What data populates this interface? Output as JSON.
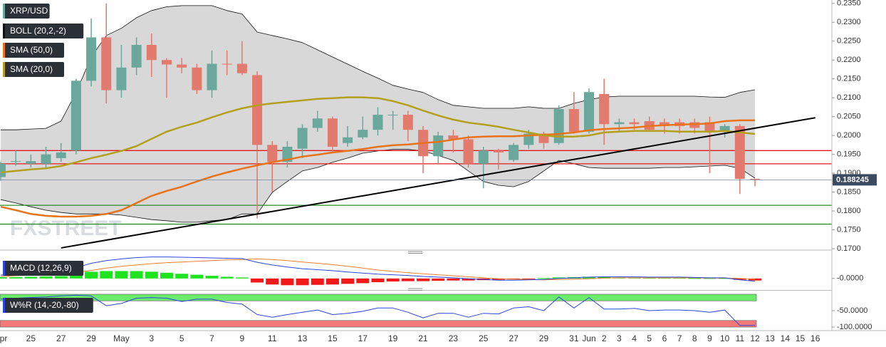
{
  "chart_data": [
    {
      "type": "candlestick",
      "title": "XRP/USD",
      "watermark": "FXSTREET",
      "categories": [
        "Apr",
        null,
        "25",
        null,
        "27",
        null,
        "29",
        null,
        "May",
        null,
        "3",
        null,
        "5",
        null,
        "7",
        null,
        "9",
        null,
        "11",
        null,
        "13",
        null,
        "15",
        null,
        "17",
        null,
        "19",
        null,
        "21",
        null,
        "23",
        null,
        "25",
        null,
        "27",
        null,
        "29",
        null,
        "31",
        "Jun",
        "2",
        "3",
        "4",
        "5",
        "6",
        "7",
        "8",
        "9",
        "10",
        "11",
        "12",
        "13",
        "14",
        "15",
        "16"
      ],
      "open": [
        0.189,
        0.193,
        0.1925,
        0.1925,
        0.194,
        0.196,
        0.2145,
        0.226,
        0.212,
        0.218,
        0.224,
        0.22,
        0.2188,
        0.218,
        0.212,
        0.219,
        0.219,
        0.216,
        0.1975,
        0.193,
        0.1965,
        0.202,
        0.2045,
        0.198,
        0.1995,
        0.2015,
        0.2055,
        0.2055,
        0.2015,
        0.1945,
        0.2,
        0.199,
        0.1925,
        0.196,
        0.1935,
        0.1975,
        0.2005,
        0.198,
        0.207,
        0.201,
        0.211,
        0.203,
        0.2035,
        0.2038,
        0.2035,
        0.2035,
        0.2035,
        0.2035,
        0.201,
        0.2025,
        0.1885,
        null,
        null,
        null,
        null
      ],
      "high": [
        0.193,
        0.196,
        0.195,
        0.197,
        0.198,
        0.215,
        0.231,
        0.235,
        0.224,
        0.226,
        0.227,
        0.2205,
        0.2205,
        0.219,
        0.2225,
        0.2225,
        0.225,
        0.217,
        0.1985,
        0.1985,
        0.203,
        0.2065,
        0.205,
        0.2025,
        0.205,
        0.2075,
        0.2065,
        0.2065,
        0.2025,
        0.201,
        0.2015,
        0.2,
        0.197,
        0.1965,
        0.198,
        0.2015,
        0.201,
        0.208,
        0.2115,
        0.2125,
        0.215,
        0.2045,
        0.2045,
        0.205,
        0.2045,
        0.2045,
        0.2045,
        0.205,
        0.203,
        0.203,
        0.1885,
        null,
        null,
        null,
        null
      ],
      "low": [
        0.188,
        0.192,
        0.1915,
        0.1912,
        0.193,
        0.195,
        0.213,
        0.2085,
        0.21,
        0.216,
        0.2155,
        0.21,
        0.2165,
        0.211,
        0.21,
        0.216,
        0.216,
        0.178,
        0.185,
        0.1915,
        0.194,
        0.201,
        0.1955,
        0.197,
        0.199,
        0.2,
        0.2015,
        0.1985,
        0.19,
        0.1925,
        0.1955,
        0.1915,
        0.186,
        0.191,
        0.193,
        0.1965,
        0.1965,
        0.1975,
        0.2005,
        0.2005,
        0.1975,
        0.201,
        0.2015,
        0.201,
        0.2005,
        0.2005,
        0.2005,
        0.19,
        0.1995,
        0.1845,
        0.1865,
        null,
        null,
        null,
        null
      ],
      "close": [
        0.1925,
        0.1932,
        0.1932,
        0.195,
        0.1955,
        0.2145,
        0.226,
        0.212,
        0.218,
        0.224,
        0.22,
        0.2188,
        0.218,
        0.212,
        0.219,
        0.2188,
        0.2165,
        0.1975,
        0.193,
        0.197,
        0.202,
        0.2045,
        0.197,
        0.1995,
        0.2015,
        0.2055,
        0.2055,
        0.2015,
        0.1945,
        0.2,
        0.199,
        0.1925,
        0.196,
        0.1955,
        0.1975,
        0.2005,
        0.198,
        0.207,
        0.201,
        0.2115,
        0.203,
        0.2035,
        0.203,
        0.2015,
        0.2025,
        0.2025,
        0.202,
        0.201,
        0.2025,
        0.1885,
        0.1882,
        null,
        null,
        null,
        null
      ],
      "up_color": "#6aa89b",
      "down_color": "#e27a6e",
      "bollinger": {
        "name": "BOLL (20,2,-2)",
        "color": "#111111",
        "fill": "#d8d8d8",
        "upper": [
          0.2015,
          0.2015,
          0.2017,
          0.2019,
          0.2038,
          0.2114,
          0.2208,
          0.2265,
          0.2284,
          0.2312,
          0.2331,
          0.2341,
          0.2344,
          0.2344,
          0.2344,
          0.2331,
          0.2322,
          0.2274,
          0.2265,
          0.2256,
          0.2246,
          0.2227,
          0.2208,
          0.2189,
          0.217,
          0.2152,
          0.2133,
          0.2123,
          0.2114,
          0.2095,
          0.208,
          0.2076,
          0.2072,
          0.2072,
          0.2072,
          0.2076,
          0.2072,
          0.2072,
          0.2085,
          0.2095,
          0.2102,
          0.2104,
          0.2104,
          0.2104,
          0.2104,
          0.2104,
          0.2104,
          0.2102,
          0.2101,
          0.2114,
          0.2121,
          null,
          null,
          null,
          null
        ],
        "lower": [
          0.183,
          0.1821,
          0.1811,
          0.1802,
          0.1796,
          0.1792,
          0.1792,
          0.1792,
          0.1789,
          0.1783,
          0.1777,
          0.1774,
          0.177,
          0.177,
          0.1774,
          0.1777,
          0.1792,
          0.1792,
          0.1849,
          0.1878,
          0.1906,
          0.1915,
          0.1929,
          0.194,
          0.1953,
          0.1959,
          0.1963,
          0.1963,
          0.1959,
          0.1947,
          0.1934,
          0.1906,
          0.1878,
          0.1868,
          0.1864,
          0.1878,
          0.1906,
          0.1934,
          0.1925,
          0.1915,
          0.1913,
          0.1913,
          0.1913,
          0.1913,
          0.1915,
          0.1915,
          0.1917,
          0.1919,
          0.1921,
          0.1913,
          0.1887,
          null,
          null,
          null,
          null
        ]
      },
      "series": [
        {
          "name": "SMA (50,0)",
          "color": "#e8731a",
          "values": [
            0.1811,
            0.1802,
            0.1792,
            0.1787,
            0.1785,
            0.1785,
            0.1787,
            0.1792,
            0.1802,
            0.1821,
            0.184,
            0.1853,
            0.1864,
            0.1878,
            0.1891,
            0.1902,
            0.1912,
            0.1921,
            0.1929,
            0.1936,
            0.1944,
            0.1949,
            0.1955,
            0.1959,
            0.1964,
            0.197,
            0.1974,
            0.1976,
            0.198,
            0.1983,
            0.1989,
            0.1995,
            0.1997,
            0.1998,
            0.1998,
            0.2,
            0.2002,
            0.2004,
            0.2008,
            0.2014,
            0.2017,
            0.2019,
            0.2021,
            0.2025,
            0.2027,
            0.2029,
            0.203,
            0.2032,
            0.2038,
            0.204,
            0.204,
            null,
            null,
            null,
            null
          ]
        },
        {
          "name": "SMA (20,0)",
          "color": "#b3a01c",
          "values": [
            0.1902,
            0.1906,
            0.191,
            0.1913,
            0.1919,
            0.1929,
            0.194,
            0.1949,
            0.1959,
            0.1972,
            0.1991,
            0.201,
            0.2023,
            0.2034,
            0.2048,
            0.2061,
            0.2072,
            0.208,
            0.2085,
            0.2089,
            0.2093,
            0.2097,
            0.2099,
            0.2101,
            0.2101,
            0.2099,
            0.2091,
            0.208,
            0.2066,
            0.2053,
            0.2042,
            0.2034,
            0.2029,
            0.2023,
            0.2015,
            0.2008,
            0.2,
            0.1997,
            0.1997,
            0.2,
            0.2008,
            0.201,
            0.2012,
            0.2012,
            0.2012,
            0.201,
            0.201,
            0.201,
            0.2012,
            0.2008,
            0.2004,
            null,
            null,
            null,
            null
          ]
        }
      ],
      "levels": [
        {
          "value": 0.196,
          "color": "#e31a1c"
        },
        {
          "value": 0.1925,
          "color": "#e31a1c"
        },
        {
          "value": 0.1815,
          "color": "#2e8b2e"
        },
        {
          "value": 0.1765,
          "color": "#2e8b2e"
        }
      ],
      "trendline": {
        "color": "#000000",
        "x": [
          "27",
          "16"
        ],
        "values": [
          0.1702,
          0.2047
        ]
      },
      "last_price": 0.188245,
      "last_price_color": "#3b4b61",
      "ylim": [
        0.17,
        0.2359
      ],
      "yticks": [
        {
          "value": 0.235,
          "label": "0.2350"
        },
        {
          "value": 0.23,
          "label": "0.2300"
        },
        {
          "value": 0.225,
          "label": "0.2250"
        },
        {
          "value": 0.22,
          "label": "0.2200"
        },
        {
          "value": 0.215,
          "label": "0.2150"
        },
        {
          "value": 0.21,
          "label": "0.2100"
        },
        {
          "value": 0.205,
          "label": "0.2050"
        },
        {
          "value": 0.2,
          "label": "0.2000"
        },
        {
          "value": 0.195,
          "label": "0.1950"
        },
        {
          "value": 0.19,
          "label": "0.1900"
        },
        {
          "value": 0.185,
          "label": "0.1850"
        },
        {
          "value": 0.18,
          "label": "0.1800"
        },
        {
          "value": 0.175,
          "label": "0.1750"
        },
        {
          "value": 0.17,
          "label": "0.1700"
        }
      ]
    },
    {
      "type": "macd",
      "title": "MACD (12,26,9)",
      "histogram": [
        0.0004,
        0.0004,
        0.0005,
        0.0006,
        0.0007,
        0.0012,
        0.002,
        0.0022,
        0.0022,
        0.0022,
        0.002,
        0.0017,
        0.0014,
        0.0011,
        0.0008,
        0.0005,
        0.0003,
        -0.0012,
        -0.0018,
        -0.002,
        -0.002,
        -0.0019,
        -0.0018,
        -0.0016,
        -0.0014,
        -0.0011,
        -0.0009,
        -0.0008,
        -0.0008,
        -0.0007,
        -0.0006,
        -0.0006,
        -0.0005,
        -0.0004,
        -0.0003,
        -0.0001,
        0.0001,
        0.0003,
        0.0004,
        0.0005,
        0.0004,
        0.0003,
        0.0003,
        0.0002,
        0.0002,
        0.0002,
        0.0001,
        0.0001,
        0.0001,
        -0.0004,
        -0.0006,
        null,
        null,
        null,
        null
      ],
      "positive_color": "#1ee31e",
      "negative_color": "#f01818",
      "macd": [
        0.001,
        0.0012,
        0.0015,
        0.0018,
        0.0022,
        0.0032,
        0.0045,
        0.0053,
        0.0058,
        0.0062,
        0.0064,
        0.0064,
        0.0063,
        0.0062,
        0.0061,
        0.006,
        0.0059,
        0.0048,
        0.004,
        0.0034,
        0.0029,
        0.0026,
        0.0023,
        0.0019,
        0.0016,
        0.0013,
        0.0011,
        0.0009,
        0.0006,
        0.0004,
        0.0002,
        -0.0001,
        -0.0003,
        -0.0005,
        -0.0005,
        -0.0004,
        -0.0003,
        0.0,
        0.0002,
        0.0004,
        0.0005,
        0.0005,
        0.0005,
        0.0004,
        0.0004,
        0.0004,
        0.0003,
        0.0002,
        0.0002,
        -0.0004,
        -0.0008,
        null,
        null,
        null,
        null
      ],
      "macd_color": "#2d46e0",
      "signal": [
        0.0006,
        0.0008,
        0.001,
        0.0012,
        0.0014,
        0.0018,
        0.0024,
        0.0031,
        0.0036,
        0.004,
        0.0044,
        0.0047,
        0.0049,
        0.0051,
        0.0053,
        0.0055,
        0.0056,
        0.0058,
        0.0056,
        0.0053,
        0.0049,
        0.0045,
        0.0041,
        0.0036,
        0.0031,
        0.0025,
        0.0021,
        0.0017,
        0.0014,
        0.0011,
        0.0008,
        0.0005,
        0.0002,
        -0.0001,
        -0.0002,
        -0.0003,
        -0.0004,
        -0.0003,
        -0.0002,
        -0.0001,
        0.0001,
        0.0002,
        0.0002,
        0.0002,
        0.0002,
        0.0002,
        0.0002,
        0.0001,
        0.0001,
        0.0,
        -0.0002,
        null,
        null,
        null,
        null
      ],
      "signal_color": "#f07f2e",
      "ylim": [
        -0.003,
        0.008
      ],
      "yticks": [
        {
          "value": 0,
          "label": "-0.0000"
        }
      ]
    },
    {
      "type": "line",
      "title": "W%R (14,-20,-80)",
      "values": [
        -15,
        -12,
        -10,
        -8,
        -5,
        -3,
        -5,
        -35,
        -28,
        -12,
        -10,
        -12,
        -22,
        -15,
        -15,
        -25,
        -30,
        -62,
        -70,
        -62,
        -55,
        -48,
        -62,
        -58,
        -52,
        -42,
        -42,
        -55,
        -72,
        -58,
        -58,
        -70,
        -58,
        -60,
        -42,
        -38,
        -50,
        -8,
        -42,
        -10,
        -45,
        -45,
        -43,
        -50,
        -48,
        -48,
        -50,
        -55,
        -48,
        -95,
        -95,
        null,
        null,
        null,
        null
      ],
      "color": "#2d46e0",
      "bands": [
        {
          "from": -20,
          "to": 0,
          "color": "#6cec6c"
        },
        {
          "from": -100,
          "to": -80,
          "color": "#f27a7a"
        }
      ],
      "ylim": [
        -106.5,
        6.5
      ],
      "yticks": [
        {
          "value": -50,
          "label": "-50.0000"
        },
        {
          "value": -100,
          "label": "-100.0000"
        }
      ]
    }
  ]
}
